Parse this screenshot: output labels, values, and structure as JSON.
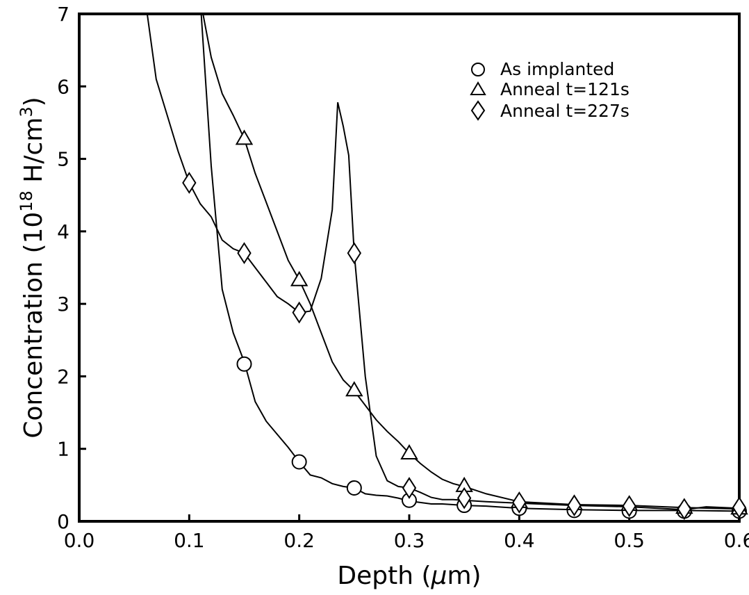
{
  "chart_data": {
    "type": "line",
    "xlabel_prefix": "Depth (",
    "xlabel_mu": "μ",
    "xlabel_suffix": "m)",
    "ylabel_prefix": "Concentration (10",
    "ylabel_exp": "18",
    "ylabel_unit": " H/cm",
    "ylabel_unit_exp": "3",
    "ylabel_close": ")",
    "xlim": [
      0.0,
      0.6
    ],
    "ylim": [
      0,
      7
    ],
    "xticks": [
      {
        "value": 0.0,
        "label": "0.0"
      },
      {
        "value": 0.1,
        "label": "0.1"
      },
      {
        "value": 0.2,
        "label": "0.2"
      },
      {
        "value": 0.3,
        "label": "0.3"
      },
      {
        "value": 0.4,
        "label": "0.4"
      },
      {
        "value": 0.5,
        "label": "0.5"
      },
      {
        "value": 0.6,
        "label": "0.6"
      }
    ],
    "yticks": [
      {
        "value": 0,
        "label": "0"
      },
      {
        "value": 1,
        "label": "1"
      },
      {
        "value": 2,
        "label": "2"
      },
      {
        "value": 3,
        "label": "3"
      },
      {
        "value": 4,
        "label": "4"
      },
      {
        "value": 5,
        "label": "5"
      },
      {
        "value": 6,
        "label": "6"
      },
      {
        "value": 7,
        "label": "7"
      }
    ],
    "legend_position": "top-right",
    "grid": false,
    "series": [
      {
        "name": "As implanted",
        "marker": "circle",
        "line": [
          [
            0.11,
            7.2
          ],
          [
            0.12,
            4.9
          ],
          [
            0.13,
            3.2
          ],
          [
            0.14,
            2.6
          ],
          [
            0.15,
            2.2
          ],
          [
            0.16,
            1.65
          ],
          [
            0.17,
            1.38
          ],
          [
            0.18,
            1.2
          ],
          [
            0.19,
            1.02
          ],
          [
            0.2,
            0.82
          ],
          [
            0.21,
            0.64
          ],
          [
            0.22,
            0.6
          ],
          [
            0.23,
            0.52
          ],
          [
            0.24,
            0.48
          ],
          [
            0.25,
            0.46
          ],
          [
            0.26,
            0.38
          ],
          [
            0.27,
            0.36
          ],
          [
            0.28,
            0.35
          ],
          [
            0.29,
            0.32
          ],
          [
            0.3,
            0.28
          ],
          [
            0.31,
            0.26
          ],
          [
            0.32,
            0.24
          ],
          [
            0.33,
            0.24
          ],
          [
            0.34,
            0.23
          ],
          [
            0.35,
            0.22
          ],
          [
            0.37,
            0.21
          ],
          [
            0.4,
            0.18
          ],
          [
            0.45,
            0.16
          ],
          [
            0.5,
            0.15
          ],
          [
            0.55,
            0.15
          ],
          [
            0.6,
            0.14
          ]
        ],
        "points": [
          [
            0.15,
            2.17
          ],
          [
            0.2,
            0.82
          ],
          [
            0.25,
            0.46
          ],
          [
            0.3,
            0.29
          ],
          [
            0.35,
            0.22
          ],
          [
            0.4,
            0.18
          ],
          [
            0.45,
            0.15
          ],
          [
            0.5,
            0.14
          ],
          [
            0.55,
            0.14
          ],
          [
            0.6,
            0.14
          ]
        ]
      },
      {
        "name": "Anneal t=121s",
        "marker": "triangle",
        "line": [
          [
            0.11,
            7.2
          ],
          [
            0.12,
            6.4
          ],
          [
            0.13,
            5.9
          ],
          [
            0.14,
            5.6
          ],
          [
            0.15,
            5.28
          ],
          [
            0.16,
            4.8
          ],
          [
            0.17,
            4.4
          ],
          [
            0.18,
            4.0
          ],
          [
            0.19,
            3.6
          ],
          [
            0.2,
            3.33
          ],
          [
            0.21,
            3.0
          ],
          [
            0.22,
            2.6
          ],
          [
            0.23,
            2.2
          ],
          [
            0.24,
            1.95
          ],
          [
            0.25,
            1.8
          ],
          [
            0.26,
            1.6
          ],
          [
            0.27,
            1.4
          ],
          [
            0.28,
            1.24
          ],
          [
            0.29,
            1.1
          ],
          [
            0.3,
            0.94
          ],
          [
            0.31,
            0.8
          ],
          [
            0.32,
            0.68
          ],
          [
            0.33,
            0.58
          ],
          [
            0.34,
            0.52
          ],
          [
            0.35,
            0.48
          ],
          [
            0.37,
            0.38
          ],
          [
            0.4,
            0.27
          ],
          [
            0.45,
            0.23
          ],
          [
            0.5,
            0.22
          ],
          [
            0.55,
            0.19
          ],
          [
            0.6,
            0.17
          ]
        ],
        "points": [
          [
            0.15,
            5.28
          ],
          [
            0.2,
            3.33
          ],
          [
            0.25,
            1.81
          ],
          [
            0.3,
            0.94
          ],
          [
            0.35,
            0.49
          ],
          [
            0.4,
            0.27
          ],
          [
            0.45,
            0.24
          ],
          [
            0.5,
            0.23
          ],
          [
            0.55,
            0.19
          ],
          [
            0.6,
            0.18
          ]
        ]
      },
      {
        "name": "Anneal t=227s",
        "marker": "diamond",
        "line": [
          [
            0.06,
            7.2
          ],
          [
            0.07,
            6.1
          ],
          [
            0.08,
            5.6
          ],
          [
            0.09,
            5.1
          ],
          [
            0.1,
            4.67
          ],
          [
            0.11,
            4.38
          ],
          [
            0.12,
            4.2
          ],
          [
            0.13,
            3.88
          ],
          [
            0.14,
            3.76
          ],
          [
            0.15,
            3.7
          ],
          [
            0.16,
            3.5
          ],
          [
            0.17,
            3.3
          ],
          [
            0.18,
            3.1
          ],
          [
            0.19,
            3.0
          ],
          [
            0.2,
            2.88
          ],
          [
            0.21,
            2.9
          ],
          [
            0.22,
            3.35
          ],
          [
            0.23,
            4.3
          ],
          [
            0.235,
            5.78
          ],
          [
            0.24,
            5.45
          ],
          [
            0.245,
            5.05
          ],
          [
            0.25,
            3.7
          ],
          [
            0.26,
            2.0
          ],
          [
            0.27,
            0.9
          ],
          [
            0.28,
            0.56
          ],
          [
            0.29,
            0.48
          ],
          [
            0.3,
            0.46
          ],
          [
            0.31,
            0.4
          ],
          [
            0.32,
            0.33
          ],
          [
            0.33,
            0.3
          ],
          [
            0.34,
            0.3
          ],
          [
            0.35,
            0.29
          ],
          [
            0.37,
            0.27
          ],
          [
            0.4,
            0.25
          ],
          [
            0.45,
            0.22
          ],
          [
            0.5,
            0.2
          ],
          [
            0.55,
            0.16
          ],
          [
            0.57,
            0.2
          ],
          [
            0.6,
            0.18
          ]
        ],
        "points": [
          [
            0.1,
            4.67
          ],
          [
            0.15,
            3.7
          ],
          [
            0.2,
            2.88
          ],
          [
            0.25,
            3.7
          ],
          [
            0.3,
            0.46
          ],
          [
            0.35,
            0.32
          ],
          [
            0.4,
            0.26
          ],
          [
            0.45,
            0.22
          ],
          [
            0.5,
            0.21
          ],
          [
            0.55,
            0.17
          ],
          [
            0.6,
            0.19
          ]
        ]
      }
    ]
  }
}
